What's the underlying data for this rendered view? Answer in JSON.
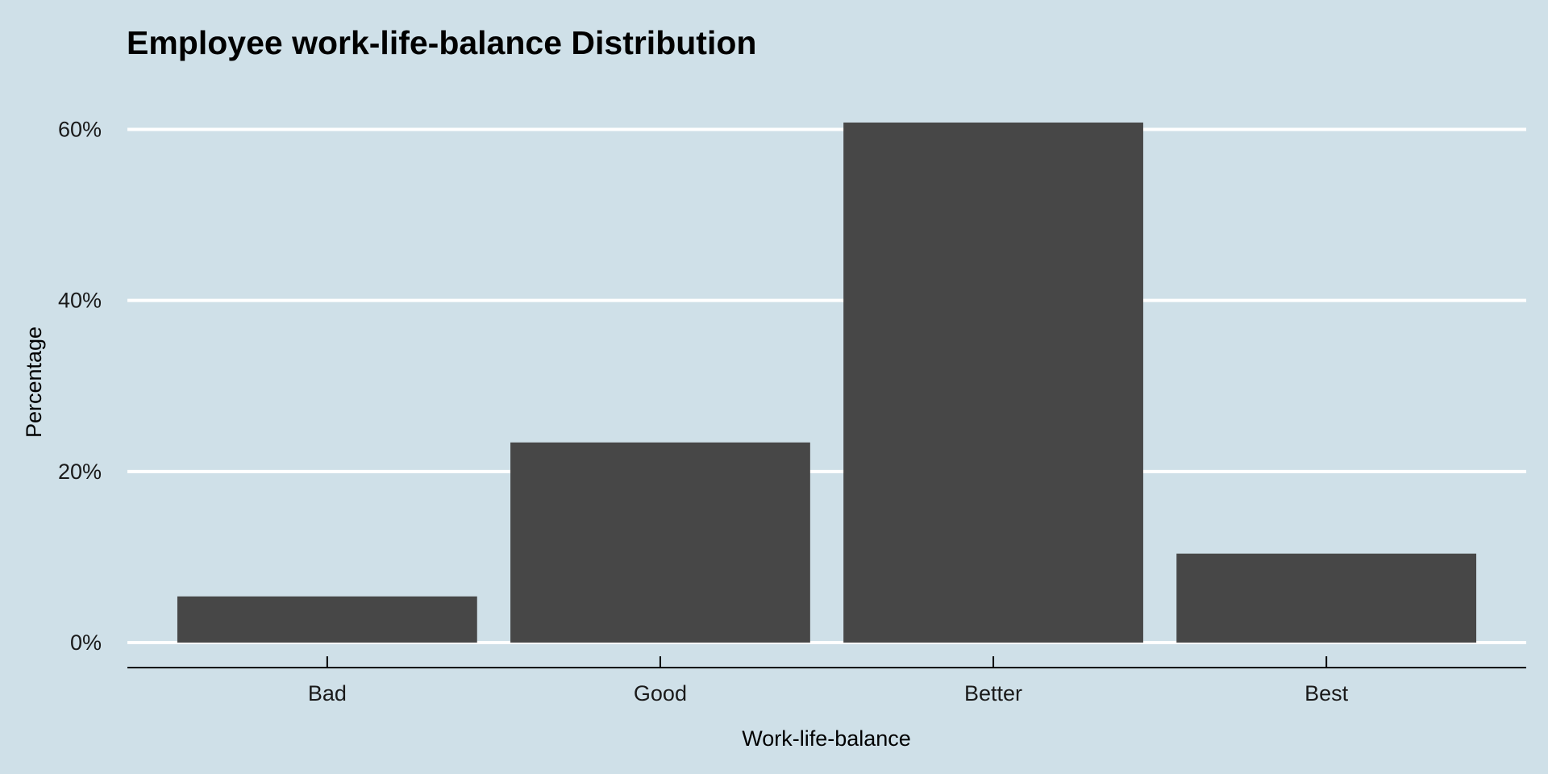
{
  "chart_data": {
    "type": "bar",
    "title": "Employee work-life-balance Distribution",
    "xlabel": "Work-life-balance",
    "ylabel": "Percentage",
    "categories": [
      "Bad",
      "Good",
      "Better",
      "Best"
    ],
    "values": [
      5.4,
      23.4,
      60.8,
      10.4
    ],
    "ylim": [
      0,
      60.8
    ],
    "yticks": [
      0,
      20,
      40,
      60
    ],
    "ytick_labels": [
      "0%",
      "20%",
      "40%",
      "60%"
    ],
    "grid": "horizontal",
    "legend": "none",
    "colors": {
      "background": "#cfe0e8",
      "bar": "#474747",
      "gridline": "#ffffff",
      "axis": "#000000"
    }
  }
}
